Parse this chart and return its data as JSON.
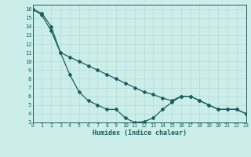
{
  "xlabel": "Humidex (Indice chaleur)",
  "background_color": "#cceee8",
  "line_color": "#1a6060",
  "grid_color": "#b8ddd8",
  "x_data": [
    0,
    1,
    2,
    3,
    4,
    5,
    6,
    7,
    8,
    9,
    10,
    11,
    12,
    13,
    14,
    15,
    16,
    17,
    18,
    19,
    20,
    21,
    22,
    23
  ],
  "y_curved": [
    16.0,
    15.5,
    14.0,
    11.0,
    8.5,
    6.5,
    5.5,
    5.0,
    4.5,
    4.5,
    3.5,
    3.0,
    3.1,
    3.5,
    4.5,
    5.3,
    6.0,
    6.0,
    5.5,
    5.0,
    4.5,
    4.5,
    4.5,
    4.0
  ],
  "y_straight": [
    16.0,
    15.3,
    13.5,
    11.0,
    10.5,
    10.0,
    9.5,
    9.0,
    8.5,
    8.0,
    7.5,
    7.0,
    6.5,
    6.2,
    5.8,
    5.5,
    6.0,
    6.0,
    5.5,
    5.0,
    4.5,
    4.5,
    4.5,
    4.0
  ],
  "xlim": [
    0,
    23
  ],
  "ylim": [
    3,
    16.5
  ],
  "yticks": [
    3,
    4,
    5,
    6,
    7,
    8,
    9,
    10,
    11,
    12,
    13,
    14,
    15,
    16
  ],
  "xticks": [
    0,
    1,
    2,
    3,
    4,
    5,
    6,
    7,
    8,
    9,
    10,
    11,
    12,
    13,
    14,
    15,
    16,
    17,
    18,
    19,
    20,
    21,
    22,
    23
  ],
  "marker_size": 2.0,
  "line_width": 0.9
}
